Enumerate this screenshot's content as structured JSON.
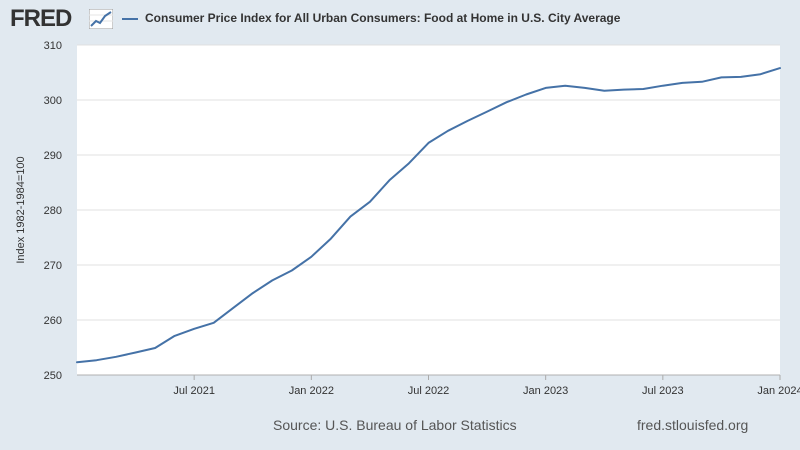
{
  "header": {
    "logo_text": "FRED",
    "logo_icon": "line-chart-icon"
  },
  "footer": {
    "source": "Source: U.S. Bureau of Labor Statistics",
    "url": "fred.stlouisfed.org"
  },
  "colors": {
    "background": "#e1e9f0",
    "plot_background": "#ffffff",
    "series": "#4572a7",
    "grid": "#e0e0e0"
  },
  "chart_data": {
    "type": "line",
    "title": "",
    "xlabel": "",
    "ylabel": "Index 1982-1984=100",
    "xlim": [
      "2021-01",
      "2024-01"
    ],
    "ylim": [
      250,
      310
    ],
    "yticks": [
      250,
      260,
      270,
      280,
      290,
      300,
      310
    ],
    "xticks": [
      {
        "date": "2021-07",
        "label": "Jul 2021"
      },
      {
        "date": "2022-01",
        "label": "Jan 2022"
      },
      {
        "date": "2022-07",
        "label": "Jul 2022"
      },
      {
        "date": "2023-01",
        "label": "Jan 2023"
      },
      {
        "date": "2023-07",
        "label": "Jul 2023"
      },
      {
        "date": "2024-01",
        "label": "Jan 2024"
      }
    ],
    "grid": true,
    "legend_position": "top",
    "series": [
      {
        "name": "Consumer Price Index for All Urban Consumers: Food at Home in U.S. City Average",
        "x": [
          "2021-01",
          "2021-02",
          "2021-03",
          "2021-04",
          "2021-05",
          "2021-06",
          "2021-07",
          "2021-08",
          "2021-09",
          "2021-10",
          "2021-11",
          "2021-12",
          "2022-01",
          "2022-02",
          "2022-03",
          "2022-04",
          "2022-05",
          "2022-06",
          "2022-07",
          "2022-08",
          "2022-09",
          "2022-10",
          "2022-11",
          "2022-12",
          "2023-01",
          "2023-02",
          "2023-03",
          "2023-04",
          "2023-05",
          "2023-06",
          "2023-07",
          "2023-08",
          "2023-09",
          "2023-10",
          "2023-11",
          "2023-12",
          "2024-01"
        ],
        "values": [
          252.3,
          252.7,
          253.3,
          254.1,
          254.9,
          257.1,
          258.4,
          259.5,
          262.2,
          264.9,
          267.2,
          269.0,
          271.5,
          274.8,
          278.8,
          281.5,
          285.4,
          288.5,
          292.2,
          294.4,
          296.2,
          297.9,
          299.6,
          301.0,
          302.2,
          302.6,
          302.2,
          301.7,
          301.9,
          302.0,
          302.6,
          303.1,
          303.3,
          304.1,
          304.2,
          304.7,
          305.8
        ]
      }
    ]
  }
}
